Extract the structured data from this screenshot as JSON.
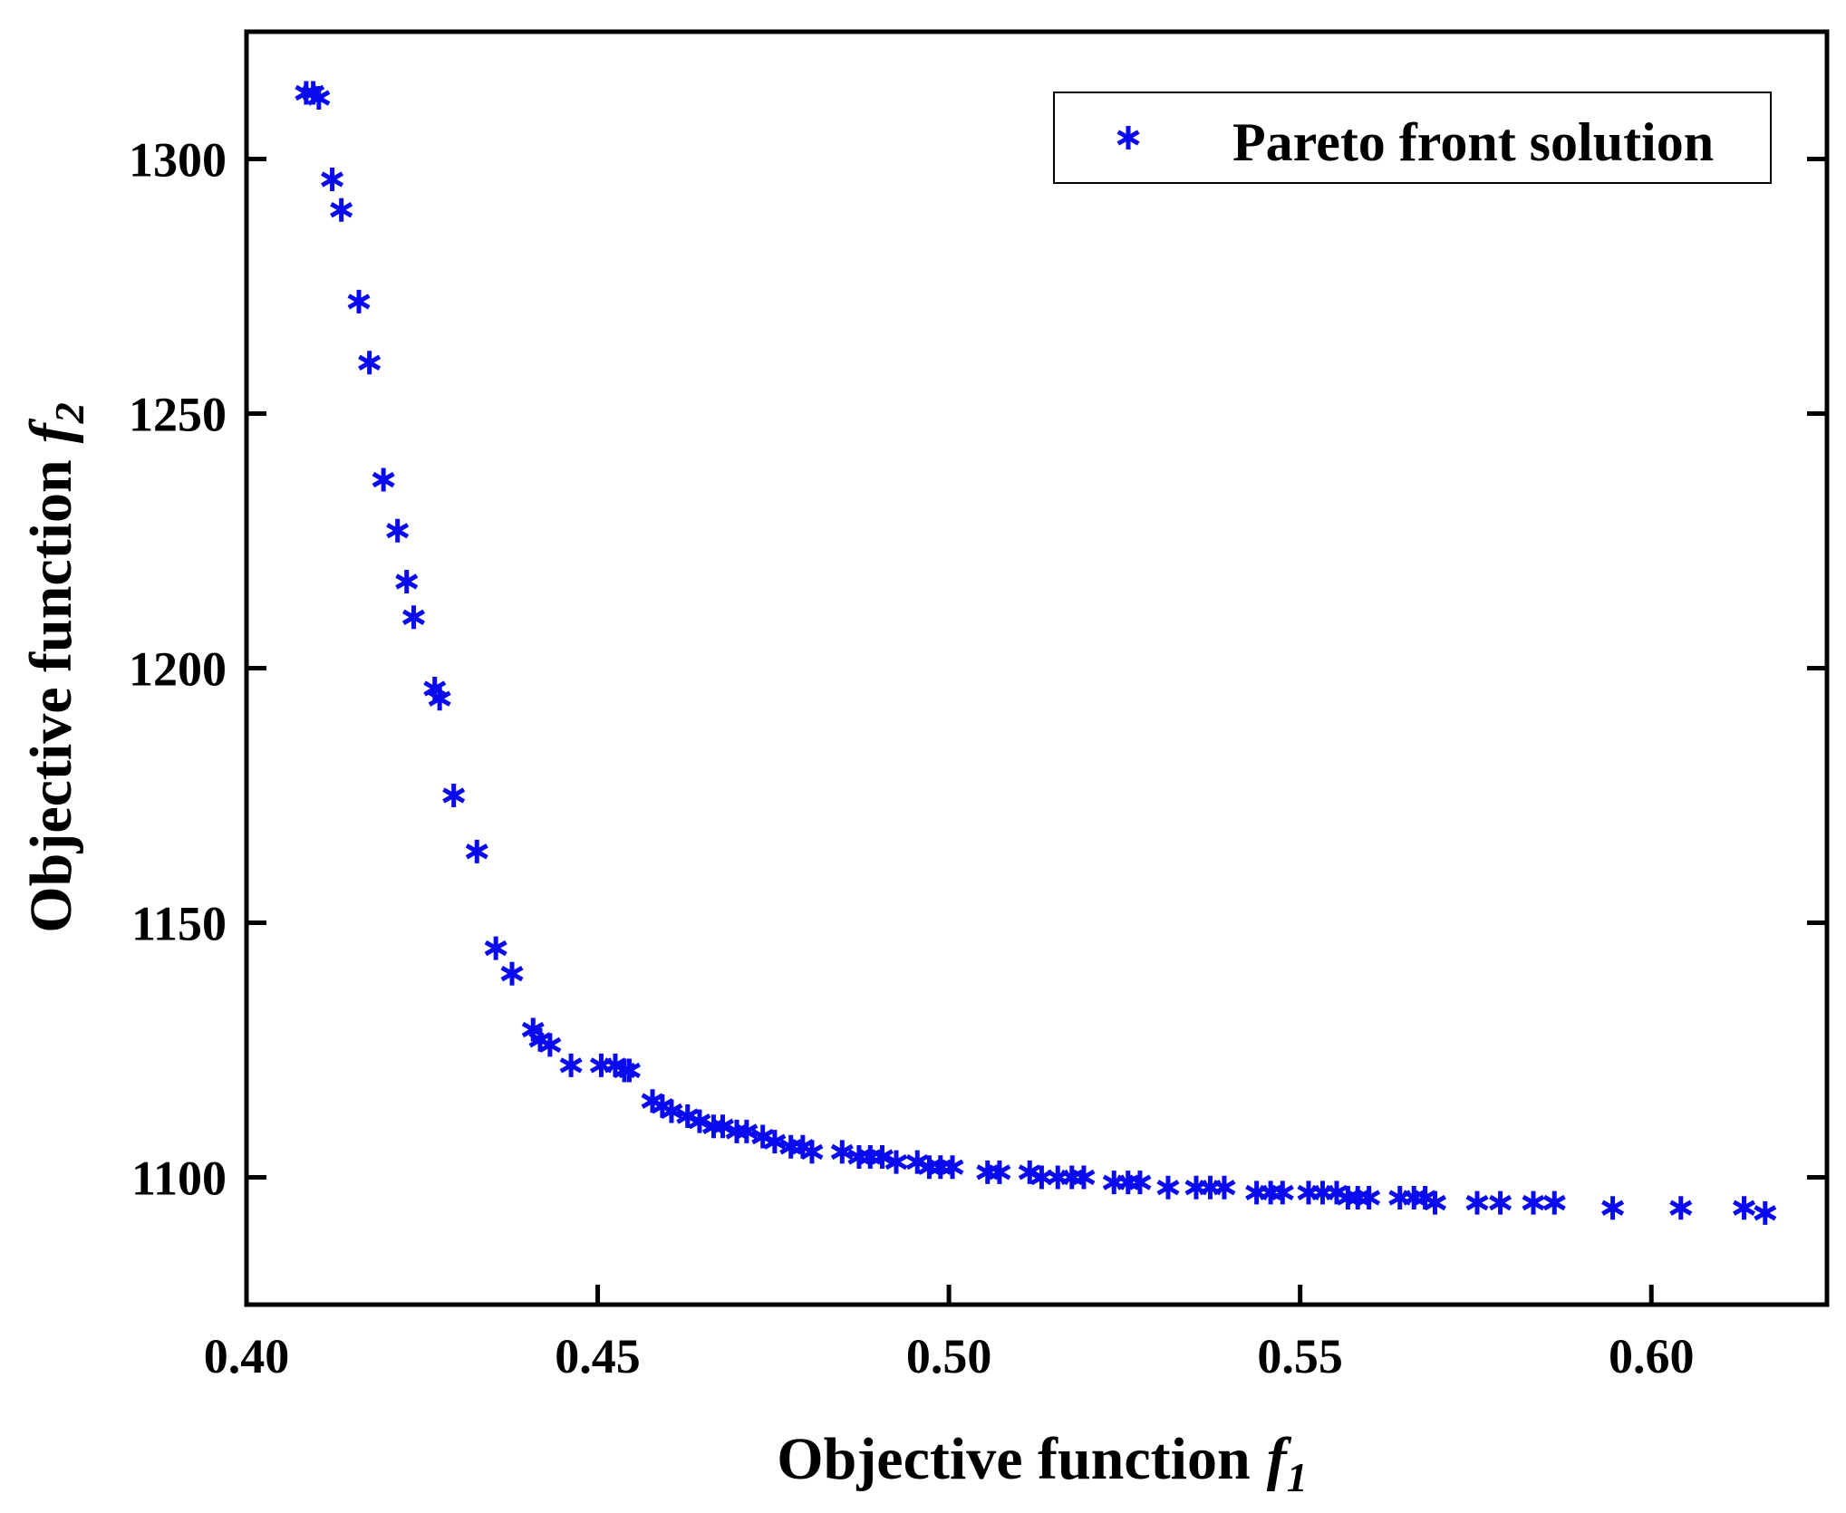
{
  "chart_data": {
    "type": "scatter",
    "title": "",
    "xlabel": "Objective function",
    "xlabel_var": "f",
    "xlabel_sub": "1",
    "ylabel": "Objective function",
    "ylabel_var": "f",
    "ylabel_sub": "2",
    "xlim": [
      0.4,
      0.625
    ],
    "ylim": [
      1075,
      1325
    ],
    "xticks": [
      0.4,
      0.45,
      0.5,
      0.55,
      0.6
    ],
    "xtick_labels": [
      "0.40",
      "0.45",
      "0.50",
      "0.55",
      "0.60"
    ],
    "yticks": [
      1100,
      1150,
      1200,
      1250,
      1300
    ],
    "ytick_labels": [
      "1100",
      "1150",
      "1200",
      "1250",
      "1300"
    ],
    "grid": false,
    "legend_position": "top-right",
    "marker_color": "#0a0aee",
    "series": [
      {
        "name": "Pareto front solution",
        "x": [
          0.4085,
          0.4095,
          0.4103,
          0.4122,
          0.4135,
          0.416,
          0.4175,
          0.4195,
          0.4215,
          0.4228,
          0.4238,
          0.4268,
          0.4275,
          0.4295,
          0.4328,
          0.4355,
          0.4378,
          0.4408,
          0.4418,
          0.4432,
          0.4462,
          0.4505,
          0.4525,
          0.4538,
          0.4545,
          0.4578,
          0.4592,
          0.4605,
          0.4628,
          0.4645,
          0.4665,
          0.4678,
          0.4698,
          0.4712,
          0.4735,
          0.4752,
          0.4775,
          0.4792,
          0.4805,
          0.4848,
          0.4872,
          0.4888,
          0.4905,
          0.4925,
          0.4955,
          0.4972,
          0.4988,
          0.5005,
          0.5055,
          0.5072,
          0.5115,
          0.5132,
          0.5155,
          0.5175,
          0.5192,
          0.5235,
          0.5255,
          0.5272,
          0.5312,
          0.5352,
          0.5372,
          0.5392,
          0.5438,
          0.5458,
          0.5475,
          0.5512,
          0.5532,
          0.5552,
          0.5568,
          0.5582,
          0.5598,
          0.5642,
          0.5662,
          0.5678,
          0.5692,
          0.5752,
          0.5785,
          0.5832,
          0.5862,
          0.5945,
          0.6042,
          0.6132,
          0.6162
        ],
        "y": [
          1313,
          1313,
          1312,
          1296,
          1290,
          1272,
          1260,
          1237,
          1227,
          1217,
          1210,
          1196,
          1194,
          1175,
          1164,
          1145,
          1140,
          1129,
          1127,
          1126,
          1122,
          1122,
          1122,
          1121,
          1121,
          1115,
          1114,
          1113,
          1112,
          1111,
          1110,
          1110,
          1109,
          1109,
          1108,
          1107,
          1106,
          1106,
          1105,
          1105,
          1104,
          1104,
          1104,
          1103,
          1103,
          1102,
          1102,
          1102,
          1101,
          1101,
          1101,
          1100,
          1100,
          1100,
          1100,
          1099,
          1099,
          1099,
          1098,
          1098,
          1098,
          1098,
          1097,
          1097,
          1097,
          1097,
          1097,
          1097,
          1096,
          1096,
          1096,
          1096,
          1096,
          1096,
          1095,
          1095,
          1095,
          1095,
          1095,
          1094,
          1094,
          1094,
          1093
        ]
      }
    ]
  }
}
